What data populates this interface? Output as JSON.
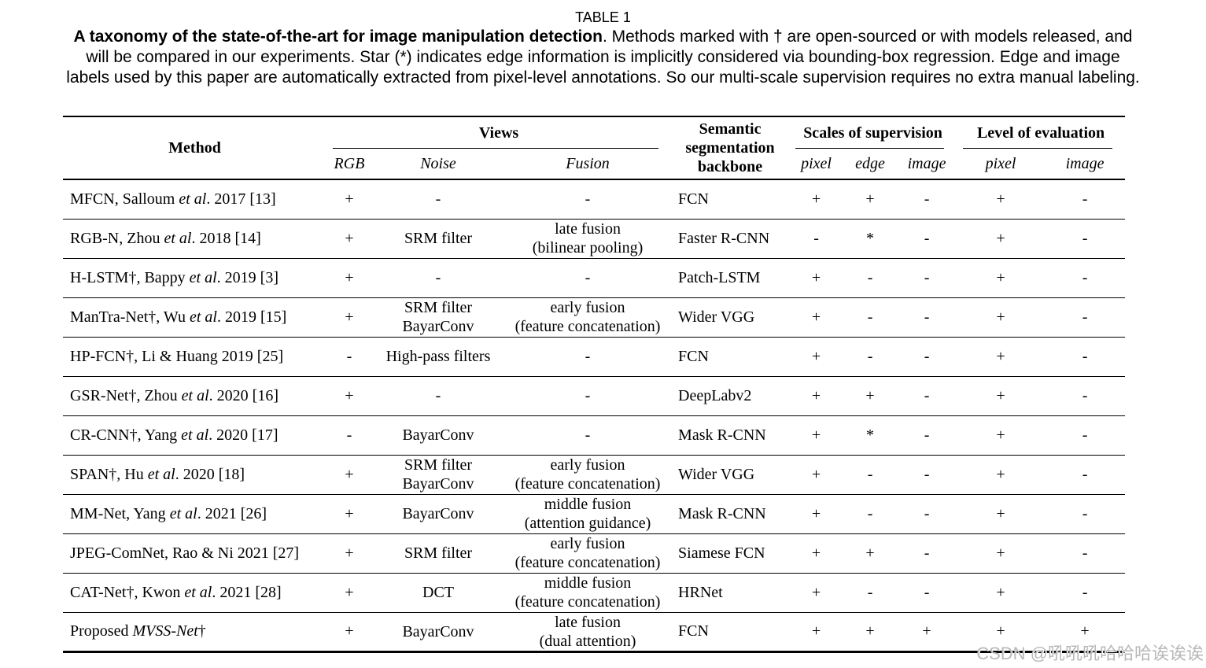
{
  "caption": {
    "label": "TABLE 1",
    "line1_bold": "A taxonomy of the state-of-the-art for image manipulation detection",
    "line1_rest": ". Methods marked with † are open-sourced or with models released, and",
    "line2": "will be compared in our experiments. Star (*) indicates edge information is implicitly considered via bounding-box regression. Edge and image",
    "line3": "labels used by this paper are automatically extracted from pixel-level annotations. So our multi-scale supervision requires no extra manual labeling."
  },
  "table": {
    "headers": {
      "method": "Method",
      "views": "Views",
      "backbone": "Semantic\nsegmentation\nbackbone",
      "scales": "Scales of supervision",
      "level": "Level of evaluation"
    },
    "subheaders": [
      "RGB",
      "Noise",
      "Fusion",
      "pixel",
      "edge",
      "image",
      "pixel",
      "image"
    ],
    "rows": [
      {
        "method": "MFCN, Salloum *et al*. 2017 [13]",
        "rgb": "+",
        "noise": [
          "-"
        ],
        "fusion": [
          "-"
        ],
        "backbone": "FCN",
        "pixel": "+",
        "edge": "+",
        "image": "-",
        "eval_pixel": "+",
        "eval_image": "-"
      },
      {
        "method": "RGB-N, Zhou *et al*. 2018 [14]",
        "rgb": "+",
        "noise": [
          "SRM filter"
        ],
        "fusion": [
          "late fusion",
          "(bilinear pooling)"
        ],
        "backbone": "Faster R-CNN",
        "pixel": "-",
        "edge": "*",
        "image": "-",
        "eval_pixel": "+",
        "eval_image": "-"
      },
      {
        "method": "H-LSTM†, Bappy *et al*. 2019 [3]",
        "rgb": "+",
        "noise": [
          "-"
        ],
        "fusion": [
          "-"
        ],
        "backbone": "Patch-LSTM",
        "pixel": "+",
        "edge": "-",
        "image": "-",
        "eval_pixel": "+",
        "eval_image": "-"
      },
      {
        "method": "ManTra-Net†, Wu *et al*. 2019 [15]",
        "rgb": "+",
        "noise": [
          "SRM filter",
          "BayarConv"
        ],
        "fusion": [
          "early fusion",
          "(feature concatenation)"
        ],
        "backbone": "Wider VGG",
        "pixel": "+",
        "edge": "-",
        "image": "-",
        "eval_pixel": "+",
        "eval_image": "-"
      },
      {
        "method": "HP-FCN†, Li & Huang 2019 [25]",
        "rgb": "-",
        "noise": [
          "High-pass filters"
        ],
        "fusion": [
          "-"
        ],
        "backbone": "FCN",
        "pixel": "+",
        "edge": "-",
        "image": "-",
        "eval_pixel": "+",
        "eval_image": "-"
      },
      {
        "method": "GSR-Net†, Zhou *et al*. 2020 [16]",
        "rgb": "+",
        "noise": [
          "-"
        ],
        "fusion": [
          "-"
        ],
        "backbone": "DeepLabv2",
        "pixel": "+",
        "edge": "+",
        "image": "-",
        "eval_pixel": "+",
        "eval_image": "-"
      },
      {
        "method": "CR-CNN†, Yang *et al*. 2020 [17]",
        "rgb": "-",
        "noise": [
          "BayarConv"
        ],
        "fusion": [
          "-"
        ],
        "backbone": "Mask R-CNN",
        "pixel": "+",
        "edge": "*",
        "image": "-",
        "eval_pixel": "+",
        "eval_image": "-"
      },
      {
        "method": "SPAN†, Hu *et al*. 2020 [18]",
        "rgb": "+",
        "noise": [
          "SRM filter",
          "BayarConv"
        ],
        "fusion": [
          "early fusion",
          "(feature concatenation)"
        ],
        "backbone": "Wider VGG",
        "pixel": "+",
        "edge": "-",
        "image": "-",
        "eval_pixel": "+",
        "eval_image": "-"
      },
      {
        "method": "MM-Net, Yang *et al*. 2021 [26]",
        "rgb": "+",
        "noise": [
          "BayarConv"
        ],
        "fusion": [
          "middle fusion",
          "(attention guidance)"
        ],
        "backbone": "Mask R-CNN",
        "pixel": "+",
        "edge": "-",
        "image": "-",
        "eval_pixel": "+",
        "eval_image": "-"
      },
      {
        "method": "JPEG-ComNet, Rao & Ni 2021 [27]",
        "rgb": "+",
        "noise": [
          "SRM filter"
        ],
        "fusion": [
          "early fusion",
          "(feature concatenation)"
        ],
        "backbone": "Siamese FCN",
        "pixel": "+",
        "edge": "+",
        "image": "-",
        "eval_pixel": "+",
        "eval_image": "-"
      },
      {
        "method": "CAT-Net†, Kwon *et al*. 2021 [28]",
        "rgb": "+",
        "noise": [
          "DCT"
        ],
        "fusion": [
          "middle fusion",
          "(feature concatenation)"
        ],
        "backbone": "HRNet",
        "pixel": "+",
        "edge": "-",
        "image": "-",
        "eval_pixel": "+",
        "eval_image": "-"
      },
      {
        "method": "Proposed *MVSS-Net*†",
        "rgb": "+",
        "noise": [
          "BayarConv"
        ],
        "fusion": [
          "late fusion",
          "(dual attention)"
        ],
        "backbone": "FCN",
        "pixel": "+",
        "edge": "+",
        "image": "+",
        "eval_pixel": "+",
        "eval_image": "+"
      }
    ]
  },
  "watermark": "CSDN @吼吼吼哈哈哈诶诶诶",
  "colors": {
    "background": "#ffffff",
    "text": "#000000",
    "rule": "#000000",
    "watermark": "#b8b8b8"
  }
}
